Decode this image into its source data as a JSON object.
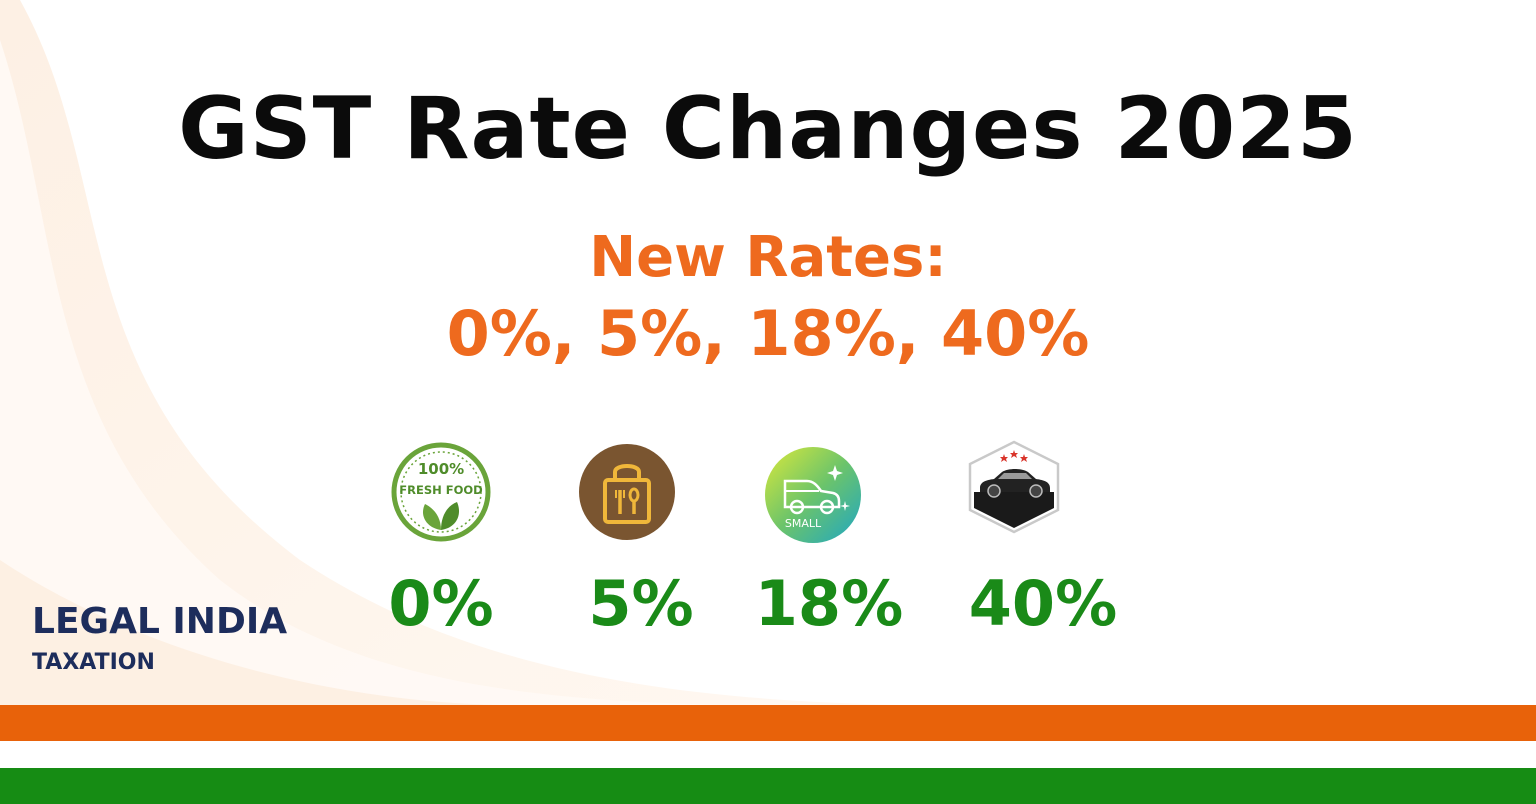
{
  "title": "GST Rate Changes 2025",
  "subtitle": {
    "line1": "New Rates:",
    "line2": "0%, 5%, 18%, 40%"
  },
  "rates": [
    {
      "label": "0%",
      "icon": "fresh-food-badge-icon",
      "icon_text_top": "100%",
      "icon_text_bottom": "FRESH FOOD"
    },
    {
      "label": "5%",
      "icon": "food-packaging-icon"
    },
    {
      "label": "18%",
      "icon": "small-car-icon",
      "icon_text": "SMALL"
    },
    {
      "label": "40%",
      "icon": "luxury-car-icon"
    }
  ],
  "brand": {
    "name": "LEGAL INDIA",
    "tagline": "TAXATION"
  },
  "colors": {
    "title": "#0b0b0b",
    "subtitle": "#ee6a1e",
    "rate_label": "#1a8a18",
    "brand": "#1d2d5c",
    "stripe_orange": "#e8620a",
    "stripe_green": "#168c14"
  }
}
